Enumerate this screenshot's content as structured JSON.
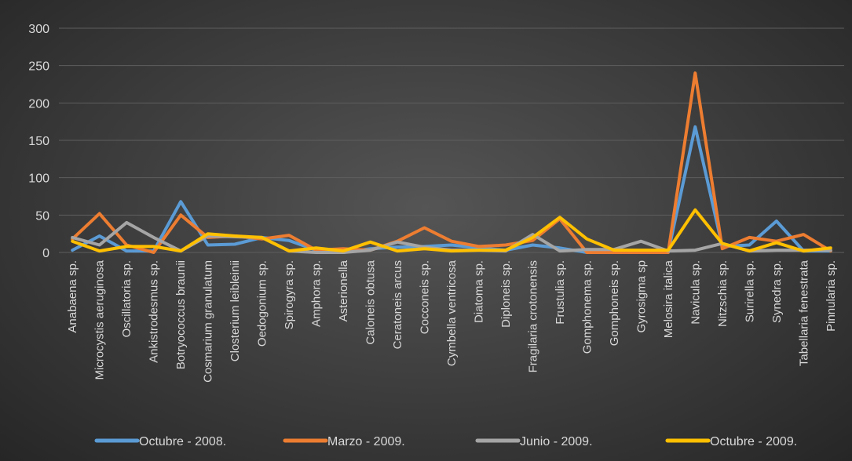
{
  "chart_data": {
    "type": "line",
    "categories": [
      "Anabaena sp.",
      "Microcystis aeruginosa",
      "Oscillatoria sp.",
      "Ankistrodesmus sp.",
      "Botryococcus braunii",
      "Cosmarium granulatum",
      "Closterium leibleinii",
      "Oedogonium sp.",
      "Spirogyra sp.",
      "Amphora sp.",
      "Asterionella",
      "Caloneis obtusa",
      "Ceratoneis arcus",
      "Cocconeis sp.",
      "Cymbella ventricosa",
      "Diatoma sp.",
      "Diploneis sp.",
      "Fragilaria crotonensis",
      "Frustulia sp.",
      "Gomphonema sp.",
      "Gomphoneis sp.",
      "Gyrosigma sp",
      "Melosira italica",
      "Navicula sp.",
      "Nitzschia sp.",
      "Surirella sp.",
      "Synedra sp.",
      "Tabellaria fenestrata",
      "Pinnularia sp."
    ],
    "series": [
      {
        "name": "Octubre - 2008.",
        "color": "#5b9bd5",
        "values": [
          3,
          22,
          2,
          2,
          68,
          10,
          11,
          20,
          16,
          3,
          0,
          5,
          7,
          8,
          10,
          6,
          3,
          10,
          6,
          0,
          0,
          0,
          0,
          168,
          8,
          10,
          42,
          2,
          2
        ]
      },
      {
        "name": "Marzo - 2009.",
        "color": "#ed7d31",
        "values": [
          18,
          52,
          10,
          0,
          50,
          20,
          22,
          18,
          23,
          3,
          5,
          3,
          15,
          33,
          15,
          8,
          10,
          16,
          45,
          0,
          0,
          0,
          0,
          240,
          5,
          20,
          15,
          24,
          2
        ]
      },
      {
        "name": "Junio - 2009.",
        "color": "#a5a5a5",
        "values": [
          20,
          10,
          40,
          20,
          2,
          22,
          21,
          20,
          2,
          0,
          0,
          3,
          14,
          7,
          3,
          3,
          2,
          24,
          2,
          4,
          4,
          15,
          2,
          3,
          12,
          2,
          3,
          3,
          3
        ]
      },
      {
        "name": "Octubre - 2009.",
        "color": "#ffc000",
        "values": [
          15,
          2,
          8,
          8,
          2,
          25,
          22,
          20,
          2,
          6,
          2,
          14,
          2,
          5,
          2,
          3,
          3,
          20,
          47,
          18,
          3,
          3,
          3,
          57,
          12,
          2,
          13,
          2,
          6
        ]
      }
    ],
    "ylim": [
      0,
      300
    ],
    "yticks": [
      0,
      50,
      100,
      150,
      200,
      250,
      300
    ],
    "grid": "horizontal",
    "legend": "bottom"
  }
}
